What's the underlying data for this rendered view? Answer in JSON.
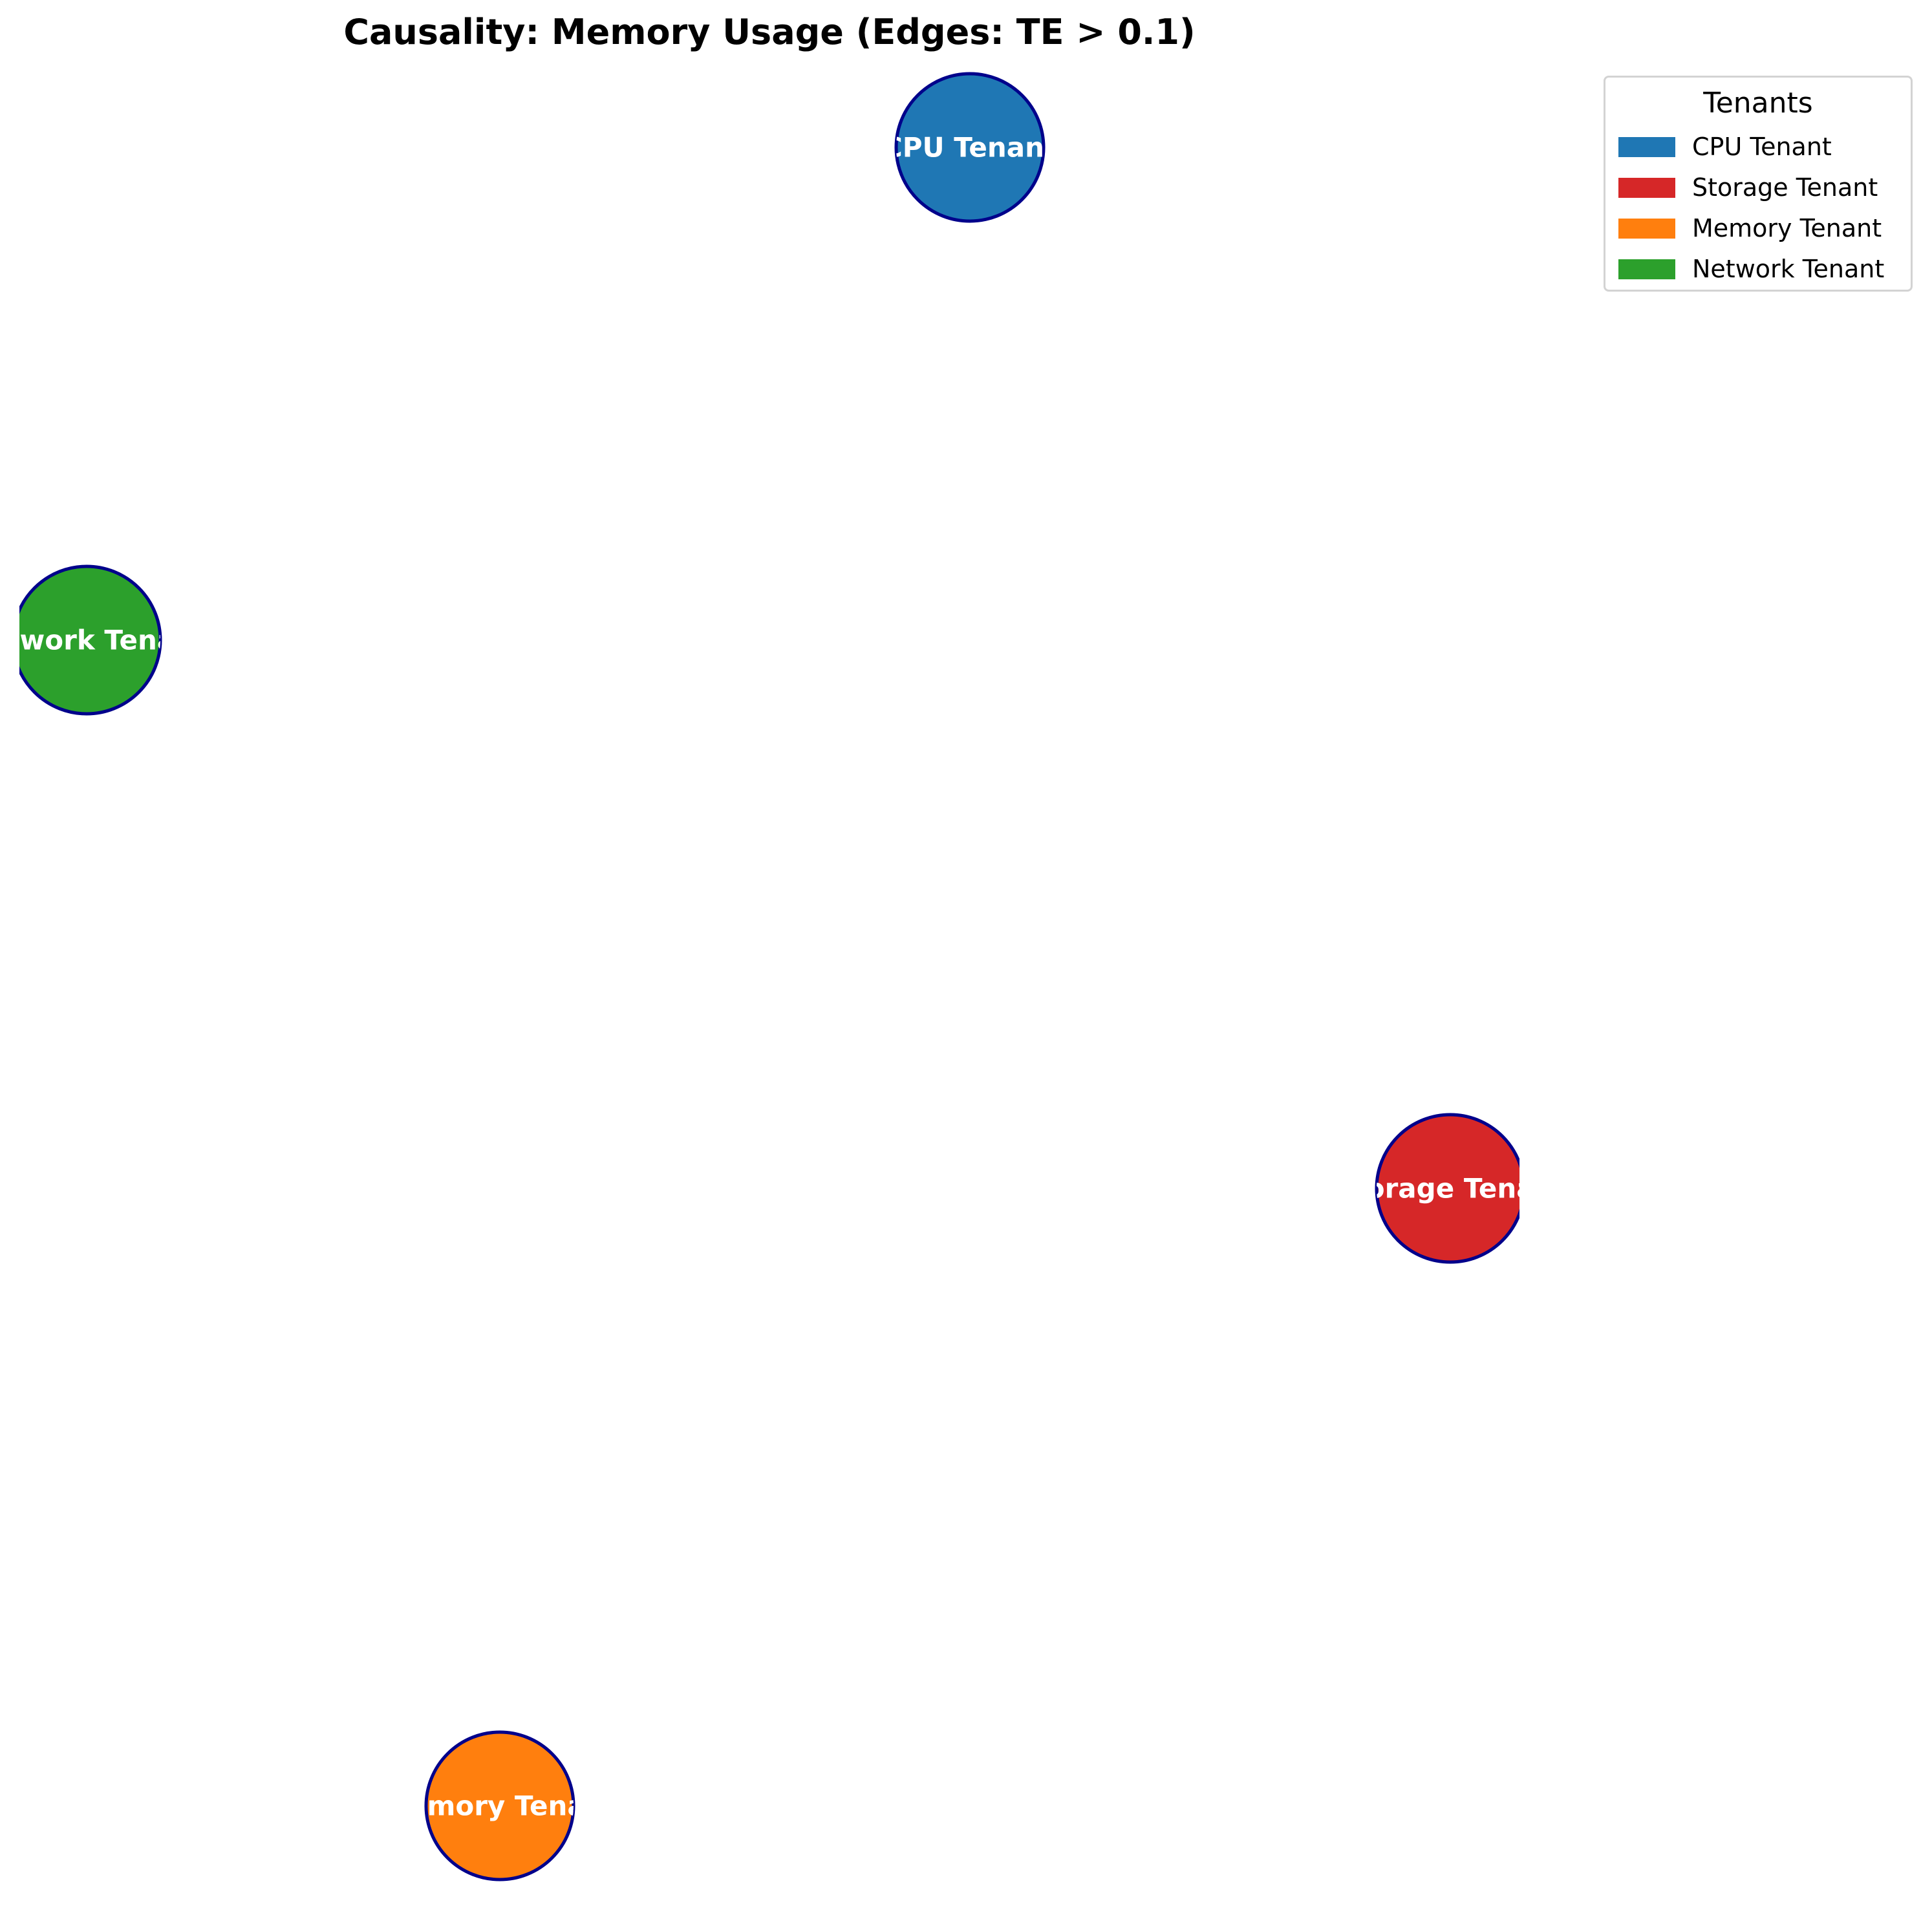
{
  "title": "Causality: Memory Usage (Edges: TE > 0.1)",
  "legend": {
    "title": "Tenants",
    "items": [
      {
        "label": "CPU Tenant",
        "color": "#1f77b4"
      },
      {
        "label": "Storage Tenant",
        "color": "#d62728"
      },
      {
        "label": "Memory Tenant",
        "color": "#ff7f0e"
      },
      {
        "label": "Network Tenant",
        "color": "#2ca02c"
      }
    ]
  },
  "nodes": [
    {
      "id": "cpu",
      "label": "CPU Tenant",
      "color": "#1f77b4"
    },
    {
      "id": "network",
      "label": "Network Tenant",
      "color": "#2ca02c"
    },
    {
      "id": "storage",
      "label": "Storage Tenant",
      "color": "#d62728"
    },
    {
      "id": "memory",
      "label": "Memory Tenant",
      "color": "#ff7f0e"
    }
  ],
  "node_border_color": "#00008b",
  "edges": []
}
